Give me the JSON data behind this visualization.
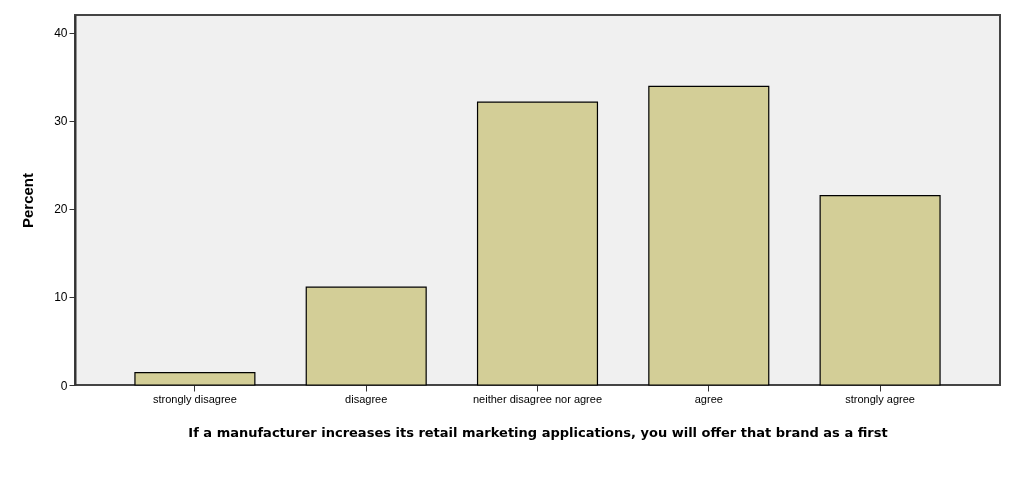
{
  "chart_data": {
    "type": "bar",
    "xlabel": "If a manufacturer increases its retail marketing applications, you will offer that brand as a first",
    "ylabel": "Percent",
    "categories": [
      "strongly disagree",
      "disagree",
      "neither disagree nor agree",
      "agree",
      "strongly agree"
    ],
    "values": [
      1.4,
      11.1,
      32.1,
      33.9,
      21.5
    ],
    "color": "#d3ce97",
    "ylim": [
      0,
      42
    ],
    "yticks": [
      0,
      10,
      20,
      30,
      40
    ],
    "grid": false
  }
}
